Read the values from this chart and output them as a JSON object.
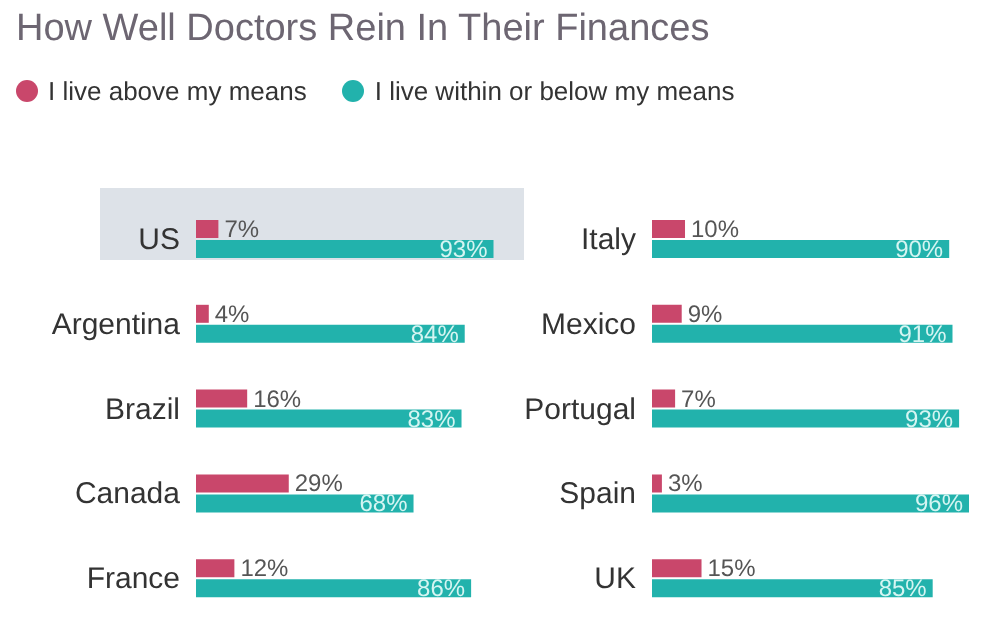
{
  "chart_data": [
    {
      "type": "bar",
      "orientation": "horizontal",
      "title": "How Well Doctors Rein In Their Finances",
      "legend": "top",
      "tick_labels": "y",
      "categories": [
        "US",
        "Argentina",
        "Brazil",
        "Canada",
        "France"
      ],
      "bands": [
        {
          "axis": "y",
          "from": "US",
          "to": "US",
          "color": "#dde2e8"
        }
      ],
      "series": [
        {
          "name": "I live above my means",
          "color": "#c9476b",
          "values": [
            7,
            4,
            16,
            29,
            12
          ],
          "value_labels": [
            "7%",
            "4%",
            "16%",
            "29%",
            "12%"
          ]
        },
        {
          "name": "I live within or below my means",
          "color": "#22b2ac",
          "values": [
            93,
            84,
            83,
            68,
            86
          ],
          "value_labels": [
            "93%",
            "84%",
            "83%",
            "68%",
            "86%"
          ]
        }
      ]
    },
    {
      "type": "bar",
      "orientation": "horizontal",
      "tick_labels": "y",
      "categories": [
        "Italy",
        "Mexico",
        "Portugal",
        "Spain",
        "UK"
      ],
      "series": [
        {
          "color": "#c9476b",
          "values": [
            10,
            9,
            7,
            3,
            15
          ],
          "value_labels": [
            "10%",
            "9%",
            "7%",
            "3%",
            "15%"
          ]
        },
        {
          "color": "#22b2ac",
          "values": [
            90,
            91,
            93,
            96,
            85
          ],
          "value_labels": [
            "90%",
            "91%",
            "93%",
            "96%",
            "85%"
          ]
        }
      ]
    }
  ]
}
